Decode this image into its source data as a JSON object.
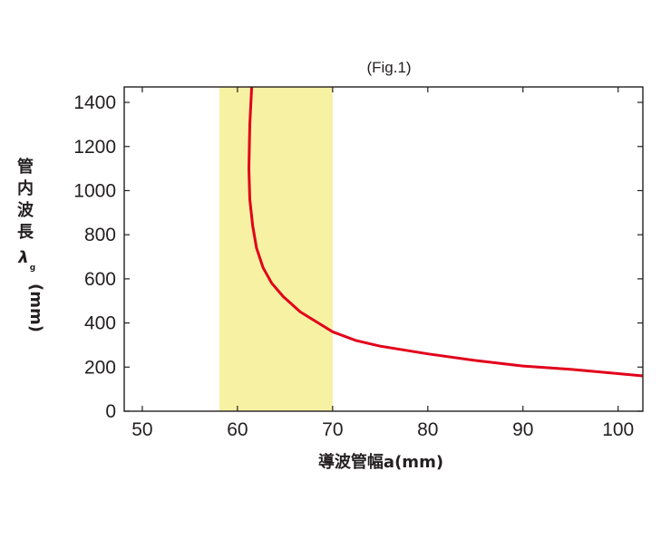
{
  "chart_data": {
    "type": "line",
    "title": "(Fig.1)",
    "xlabel": "導波管幅a(mm)",
    "ylabel": {
      "chars": [
        "管",
        "内",
        "波",
        "長"
      ],
      "symbol": "λ",
      "subscript": "g",
      "unit": "(mm)"
    },
    "xlim": [
      48.1,
      102.6
    ],
    "ylim": [
      0,
      1470
    ],
    "x_ticks": [
      50,
      60,
      70,
      80,
      90,
      100
    ],
    "x_tick_labels": [
      "50",
      "60",
      "70",
      "80",
      "90",
      "100"
    ],
    "y_ticks": [
      0,
      200,
      400,
      600,
      800,
      1000,
      1200,
      1400
    ],
    "y_tick_labels": [
      "0",
      "200",
      "400",
      "600",
      "800",
      "1000",
      "1200",
      "1400"
    ],
    "grid": false,
    "highlight_band": {
      "x_range": [
        58.1,
        70
      ],
      "color": "#f7f1a4"
    },
    "series": [
      {
        "color": "#e2001a",
        "x": [
          61.5,
          61.3,
          61.2,
          61.3,
          61.6,
          62.0,
          62.7,
          63.6,
          64.8,
          66.6,
          68.5,
          70,
          72.5,
          75,
          80,
          85,
          90,
          95,
          102.6
        ],
        "y": [
          1470,
          1300,
          1100,
          960,
          840,
          740,
          650,
          580,
          520,
          450,
          400,
          360,
          320,
          295,
          260,
          230,
          205,
          190,
          160
        ]
      }
    ]
  }
}
